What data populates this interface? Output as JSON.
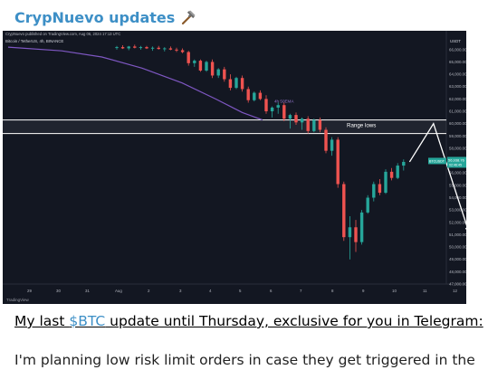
{
  "post": {
    "channel_name": "CrypNuevo updates",
    "channel_icon": "hammer-icon",
    "caption_prefix": "My last ",
    "caption_cashtag": "$BTC",
    "caption_suffix": " update until Thursday, exclusive for you in Telegram:",
    "body_text": "I'm planning low risk limit orders in case they get triggered in the"
  },
  "chart_data": {
    "type": "candlestick",
    "published_note": "CrypNuevo published on TradingView.com, Aug 06, 2024 17:13 UTC",
    "symbol_line": "Bitcoin / TetherUS, 4h, BINANCE",
    "currency": "USDT",
    "price_ticks": [
      "66,000.00",
      "65,000.00",
      "64,000.00",
      "63,000.00",
      "62,000.00",
      "61,000.00",
      "60,000.00",
      "59,000.00",
      "58,000.00",
      "57,000.00",
      "56,000.00",
      "55,000.00",
      "54,000.00",
      "53,000.00",
      "52,000.00",
      "51,000.00",
      "50,000.00",
      "49,000.00",
      "48,000.00",
      "47,000.00"
    ],
    "date_ticks": [
      "29",
      "30",
      "31",
      "Aug",
      "2",
      "3",
      "4",
      "5",
      "6",
      "7",
      "8",
      "9",
      "10",
      "11",
      "12"
    ],
    "ema_label": "4h 50EMA",
    "zone_label": "Range lows",
    "last_price_badge": "BTCUSDT",
    "last_price": "56,938.76",
    "countdown": "02:46:45",
    "watermark": "TradingView",
    "ylim": [
      47000,
      66500
    ],
    "range_zone": [
      59200,
      60300
    ],
    "ema_points": [
      [
        0,
        66200
      ],
      [
        8,
        65900
      ],
      [
        14,
        65400
      ],
      [
        20,
        64500
      ],
      [
        26,
        63300
      ],
      [
        31,
        62000
      ],
      [
        35,
        60900
      ],
      [
        38,
        60300
      ]
    ],
    "candles": [
      [
        66150,
        66300,
        66000,
        66200
      ],
      [
        66200,
        66350,
        66050,
        66100
      ],
      [
        66100,
        66300,
        65950,
        66250
      ],
      [
        66250,
        66400,
        66100,
        66150
      ],
      [
        66150,
        66300,
        66000,
        66200
      ],
      [
        66200,
        66300,
        66050,
        66100
      ],
      [
        66100,
        66250,
        65900,
        66150
      ],
      [
        66150,
        66300,
        66000,
        66050
      ],
      [
        66050,
        66200,
        65850,
        66100
      ],
      [
        66100,
        66250,
        65950,
        66000
      ],
      [
        66000,
        66150,
        65800,
        65950
      ],
      [
        65950,
        66100,
        65700,
        65800
      ],
      [
        65800,
        65900,
        64700,
        64900
      ],
      [
        64900,
        65200,
        64600,
        65100
      ],
      [
        65100,
        65200,
        64200,
        64300
      ],
      [
        64300,
        65100,
        64200,
        65000
      ],
      [
        65000,
        65200,
        63700,
        63900
      ],
      [
        63900,
        64500,
        63700,
        64400
      ],
      [
        64400,
        64600,
        63400,
        63600
      ],
      [
        63600,
        64000,
        62700,
        62900
      ],
      [
        62900,
        63800,
        62800,
        63700
      ],
      [
        63700,
        63900,
        62600,
        62800
      ],
      [
        62800,
        63000,
        61700,
        61900
      ],
      [
        61900,
        62600,
        61800,
        62500
      ],
      [
        62500,
        62700,
        61900,
        62000
      ],
      [
        62000,
        62300,
        60800,
        61000
      ],
      [
        61000,
        61400,
        60500,
        61300
      ],
      [
        61300,
        61700,
        60800,
        61500
      ],
      [
        61500,
        61700,
        60200,
        60400
      ],
      [
        60400,
        60800,
        59600,
        60700
      ],
      [
        60700,
        60900,
        59900,
        60100
      ],
      [
        60100,
        60500,
        59500,
        60400
      ],
      [
        60400,
        60600,
        59200,
        59400
      ],
      [
        59400,
        60400,
        59300,
        60300
      ],
      [
        60300,
        60500,
        59300,
        59500
      ],
      [
        59500,
        59700,
        57600,
        57800
      ],
      [
        57800,
        58900,
        57400,
        58700
      ],
      [
        58700,
        58900,
        54800,
        55100
      ],
      [
        55100,
        55300,
        50500,
        50800
      ],
      [
        50800,
        52500,
        49000,
        51600
      ],
      [
        51600,
        52200,
        49600,
        50400
      ],
      [
        50400,
        53000,
        50200,
        52800
      ],
      [
        52800,
        54200,
        52700,
        54000
      ],
      [
        54000,
        55300,
        53700,
        55100
      ],
      [
        55100,
        55500,
        54200,
        54400
      ],
      [
        54400,
        56300,
        54300,
        56100
      ],
      [
        56100,
        56400,
        55400,
        55600
      ],
      [
        55600,
        56800,
        55500,
        56600
      ],
      [
        56600,
        57100,
        56200,
        56900
      ]
    ],
    "projection_path": [
      [
        49,
        56900
      ],
      [
        53,
        60000
      ],
      [
        59,
        51100
      ]
    ]
  }
}
